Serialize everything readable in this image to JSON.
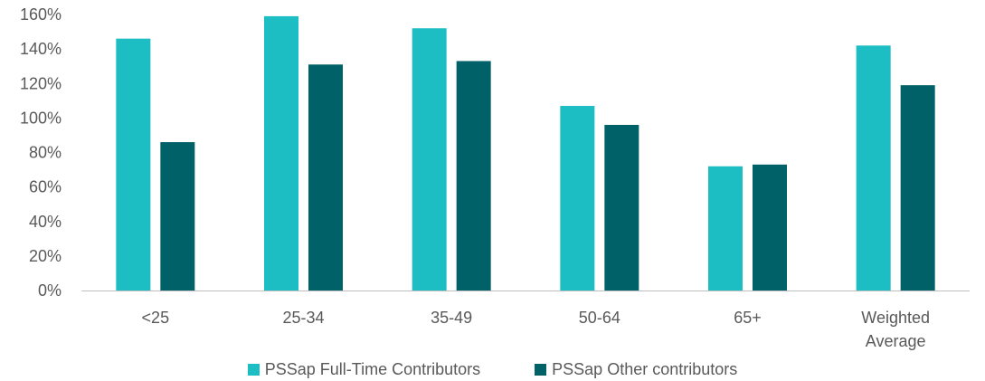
{
  "chart_data": {
    "type": "bar",
    "categories": [
      [
        "<25"
      ],
      [
        "25-34"
      ],
      [
        "35-49"
      ],
      [
        "50-64"
      ],
      [
        "65+"
      ],
      [
        "Weighted",
        "Average"
      ]
    ],
    "series": [
      {
        "name": "PSSap Full-Time Contributors",
        "color": "#1dbdc4",
        "values": [
          146,
          159,
          152,
          107,
          72,
          142
        ]
      },
      {
        "name": "PSSap Other contributors",
        "color": "#006168",
        "values": [
          86,
          131,
          133,
          96,
          73,
          119
        ]
      }
    ],
    "yticks": [
      "0%",
      "20%",
      "40%",
      "60%",
      "80%",
      "100%",
      "120%",
      "140%",
      "160%"
    ],
    "ylim": [
      0,
      160
    ],
    "title": "",
    "xlabel": "",
    "ylabel": "",
    "grid": false,
    "legend_position": "bottom"
  }
}
